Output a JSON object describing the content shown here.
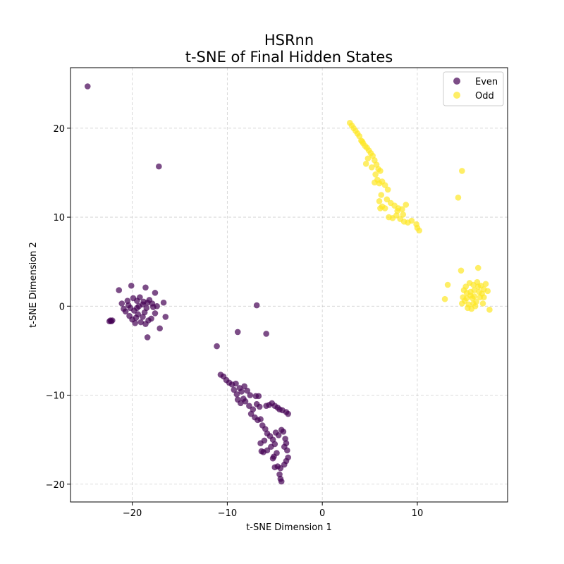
{
  "chart_data": {
    "type": "scatter",
    "title": "HSRnn",
    "subtitle": "t-SNE of Final Hidden States",
    "xlabel": "t-SNE Dimension 1",
    "ylabel": "t-SNE Dimension 2",
    "xlim": [
      -26.5,
      19.5
    ],
    "ylim": [
      -22.0,
      26.8
    ],
    "xticks": [
      -20,
      -10,
      0,
      10
    ],
    "yticks": [
      -20,
      -10,
      0,
      10,
      20
    ],
    "xtick_labels": [
      "−20",
      "−10",
      "0",
      "10"
    ],
    "ytick_labels": [
      "−20",
      "−10",
      "0",
      "10",
      "20"
    ],
    "grid": true,
    "legend_position": "top-right",
    "series": [
      {
        "name": "Even",
        "color": "#440154",
        "points": [
          [
            -24.7,
            24.7
          ],
          [
            -17.2,
            15.7
          ],
          [
            -6.9,
            0.1
          ],
          [
            -8.9,
            -2.9
          ],
          [
            -5.9,
            -3.1
          ],
          [
            -11.1,
            -4.5
          ],
          [
            -22.3,
            -1.6
          ],
          [
            -22.2,
            -1.7
          ],
          [
            -22.1,
            -1.6
          ],
          [
            -22.4,
            -1.7
          ],
          [
            -20.1,
            2.3
          ],
          [
            -18.6,
            2.1
          ],
          [
            -21.4,
            1.8
          ],
          [
            -17.6,
            1.5
          ],
          [
            -16.7,
            0.4
          ],
          [
            -16.5,
            -1.2
          ],
          [
            -17.1,
            -2.5
          ],
          [
            -18.4,
            -3.5
          ],
          [
            -19.3,
            0.0
          ],
          [
            -18.8,
            0.5
          ],
          [
            -19.8,
            -0.5
          ],
          [
            -19.5,
            0.6
          ],
          [
            -18.5,
            -0.2
          ],
          [
            -20.4,
            0.1
          ],
          [
            -20.9,
            -0.3
          ],
          [
            -21.1,
            0.3
          ],
          [
            -18.2,
            0.7
          ],
          [
            -17.8,
            -0.1
          ],
          [
            -17.6,
            -0.8
          ],
          [
            -18.9,
            -1.2
          ],
          [
            -19.6,
            -1.3
          ],
          [
            -20.3,
            -1.1
          ],
          [
            -19.1,
            -1.8
          ],
          [
            -18.3,
            -1.6
          ],
          [
            -19.9,
            0.9
          ],
          [
            -19.2,
            1.0
          ],
          [
            -18.7,
            -0.7
          ],
          [
            -20.7,
            -0.6
          ],
          [
            -19.4,
            -0.9
          ],
          [
            -17.9,
            0.3
          ],
          [
            -20.5,
            0.6
          ],
          [
            -18.0,
            -1.4
          ],
          [
            -19.7,
            -1.9
          ],
          [
            -18.6,
            -2.0
          ],
          [
            -20.0,
            -1.5
          ],
          [
            -17.4,
            0.0
          ],
          [
            -18.9,
            0.2
          ],
          [
            -19.5,
            -0.2
          ],
          [
            -20.2,
            -0.2
          ],
          [
            -18.4,
            0.4
          ],
          [
            -10.7,
            -7.7
          ],
          [
            -10.4,
            -7.9
          ],
          [
            -10.1,
            -8.3
          ],
          [
            -9.8,
            -8.6
          ],
          [
            -9.5,
            -8.8
          ],
          [
            -9.1,
            -8.7
          ],
          [
            -8.7,
            -9.2
          ],
          [
            -9.3,
            -9.4
          ],
          [
            -8.2,
            -9.0
          ],
          [
            -8.5,
            -9.6
          ],
          [
            -9.0,
            -9.9
          ],
          [
            -8.9,
            -10.5
          ],
          [
            -8.6,
            -10.9
          ],
          [
            -8.1,
            -10.7
          ],
          [
            -7.7,
            -11.2
          ],
          [
            -7.3,
            -11.6
          ],
          [
            -7.0,
            -10.1
          ],
          [
            -7.6,
            -10.0
          ],
          [
            -6.7,
            -10.1
          ],
          [
            -7.5,
            -12.1
          ],
          [
            -7.1,
            -12.5
          ],
          [
            -6.8,
            -12.8
          ],
          [
            -6.5,
            -12.7
          ],
          [
            -6.3,
            -13.4
          ],
          [
            -6.0,
            -13.8
          ],
          [
            -5.8,
            -14.3
          ],
          [
            -5.5,
            -14.6
          ],
          [
            -5.2,
            -15.0
          ],
          [
            -5.0,
            -15.5
          ],
          [
            -5.4,
            -15.8
          ],
          [
            -5.8,
            -16.2
          ],
          [
            -6.2,
            -16.4
          ],
          [
            -6.5,
            -15.4
          ],
          [
            -6.4,
            -16.3
          ],
          [
            -5.9,
            -11.2
          ],
          [
            -5.6,
            -11.1
          ],
          [
            -5.3,
            -10.9
          ],
          [
            -5.0,
            -11.2
          ],
          [
            -4.7,
            -11.4
          ],
          [
            -4.5,
            -11.6
          ],
          [
            -4.2,
            -11.7
          ],
          [
            -3.8,
            -11.9
          ],
          [
            -3.6,
            -12.1
          ],
          [
            -4.9,
            -14.2
          ],
          [
            -4.6,
            -14.5
          ],
          [
            -4.3,
            -13.9
          ],
          [
            -4.1,
            -14.1
          ],
          [
            -3.9,
            -14.9
          ],
          [
            -3.8,
            -15.4
          ],
          [
            -4.0,
            -15.8
          ],
          [
            -3.7,
            -16.2
          ],
          [
            -3.6,
            -17.0
          ],
          [
            -3.8,
            -17.4
          ],
          [
            -4.0,
            -17.8
          ],
          [
            -4.4,
            -18.2
          ],
          [
            -4.7,
            -18.0
          ],
          [
            -5.0,
            -18.1
          ],
          [
            -4.8,
            -16.5
          ],
          [
            -5.1,
            -16.9
          ],
          [
            -4.5,
            -18.9
          ],
          [
            -4.4,
            -19.4
          ],
          [
            -4.3,
            -19.7
          ],
          [
            -5.2,
            -17.1
          ],
          [
            -6.1,
            -15.1
          ],
          [
            -7.9,
            -9.5
          ],
          [
            -8.3,
            -10.4
          ],
          [
            -6.9,
            -11.0
          ],
          [
            -6.6,
            -11.3
          ]
        ]
      },
      {
        "name": "Odd",
        "color": "#fde725",
        "points": [
          [
            2.9,
            20.6
          ],
          [
            3.1,
            20.3
          ],
          [
            3.3,
            20.0
          ],
          [
            3.5,
            19.7
          ],
          [
            3.7,
            19.4
          ],
          [
            3.9,
            19.1
          ],
          [
            4.1,
            18.6
          ],
          [
            4.3,
            18.3
          ],
          [
            4.5,
            18.0
          ],
          [
            4.7,
            17.8
          ],
          [
            4.9,
            17.5
          ],
          [
            5.1,
            17.2
          ],
          [
            5.3,
            16.9
          ],
          [
            5.5,
            16.4
          ],
          [
            5.7,
            15.9
          ],
          [
            5.9,
            15.4
          ],
          [
            6.1,
            15.2
          ],
          [
            4.6,
            16.0
          ],
          [
            5.6,
            14.8
          ],
          [
            5.8,
            14.2
          ],
          [
            6.0,
            13.8
          ],
          [
            6.3,
            14.0
          ],
          [
            6.6,
            13.6
          ],
          [
            6.9,
            13.1
          ],
          [
            5.5,
            13.9
          ],
          [
            6.2,
            12.5
          ],
          [
            6.8,
            12.0
          ],
          [
            7.2,
            11.6
          ],
          [
            7.6,
            11.3
          ],
          [
            8.0,
            11.0
          ],
          [
            8.4,
            10.9
          ],
          [
            8.8,
            11.4
          ],
          [
            6.0,
            11.8
          ],
          [
            6.3,
            11.2
          ],
          [
            6.6,
            11.0
          ],
          [
            6.1,
            11.0
          ],
          [
            7.0,
            10.0
          ],
          [
            7.4,
            9.9
          ],
          [
            7.8,
            10.2
          ],
          [
            8.2,
            9.8
          ],
          [
            8.6,
            9.5
          ],
          [
            9.0,
            9.4
          ],
          [
            9.4,
            9.6
          ],
          [
            9.9,
            9.2
          ],
          [
            10.2,
            8.5
          ],
          [
            10.0,
            8.8
          ],
          [
            8.5,
            10.3
          ],
          [
            7.9,
            10.7
          ],
          [
            4.2,
            18.5
          ],
          [
            4.8,
            16.6
          ],
          [
            5.2,
            15.6
          ],
          [
            14.7,
            15.2
          ],
          [
            14.3,
            12.2
          ],
          [
            13.2,
            2.4
          ],
          [
            12.9,
            0.8
          ],
          [
            14.6,
            4.0
          ],
          [
            16.4,
            4.3
          ],
          [
            17.6,
            -0.4
          ],
          [
            17.4,
            1.7
          ],
          [
            15.2,
            1.5
          ],
          [
            15.6,
            1.2
          ],
          [
            16.0,
            1.8
          ],
          [
            16.4,
            2.2
          ],
          [
            16.8,
            1.4
          ],
          [
            15.0,
            0.6
          ],
          [
            15.4,
            0.2
          ],
          [
            15.8,
            0.9
          ],
          [
            16.2,
            0.5
          ],
          [
            16.6,
            1.0
          ],
          [
            15.1,
            2.2
          ],
          [
            15.5,
            2.6
          ],
          [
            15.9,
            2.4
          ],
          [
            16.3,
            2.7
          ],
          [
            16.7,
            2.3
          ],
          [
            17.0,
            1.9
          ],
          [
            14.8,
            1.0
          ],
          [
            14.9,
            1.8
          ],
          [
            15.3,
            -0.2
          ],
          [
            15.7,
            -0.3
          ],
          [
            16.1,
            0.0
          ],
          [
            17.0,
            1.0
          ],
          [
            17.2,
            2.5
          ],
          [
            16.9,
            0.3
          ],
          [
            15.6,
            1.6
          ],
          [
            16.0,
            1.1
          ],
          [
            15.2,
            0.9
          ],
          [
            16.5,
            1.6
          ],
          [
            14.7,
            0.3
          ],
          [
            15.9,
            0.3
          ]
        ]
      }
    ]
  }
}
